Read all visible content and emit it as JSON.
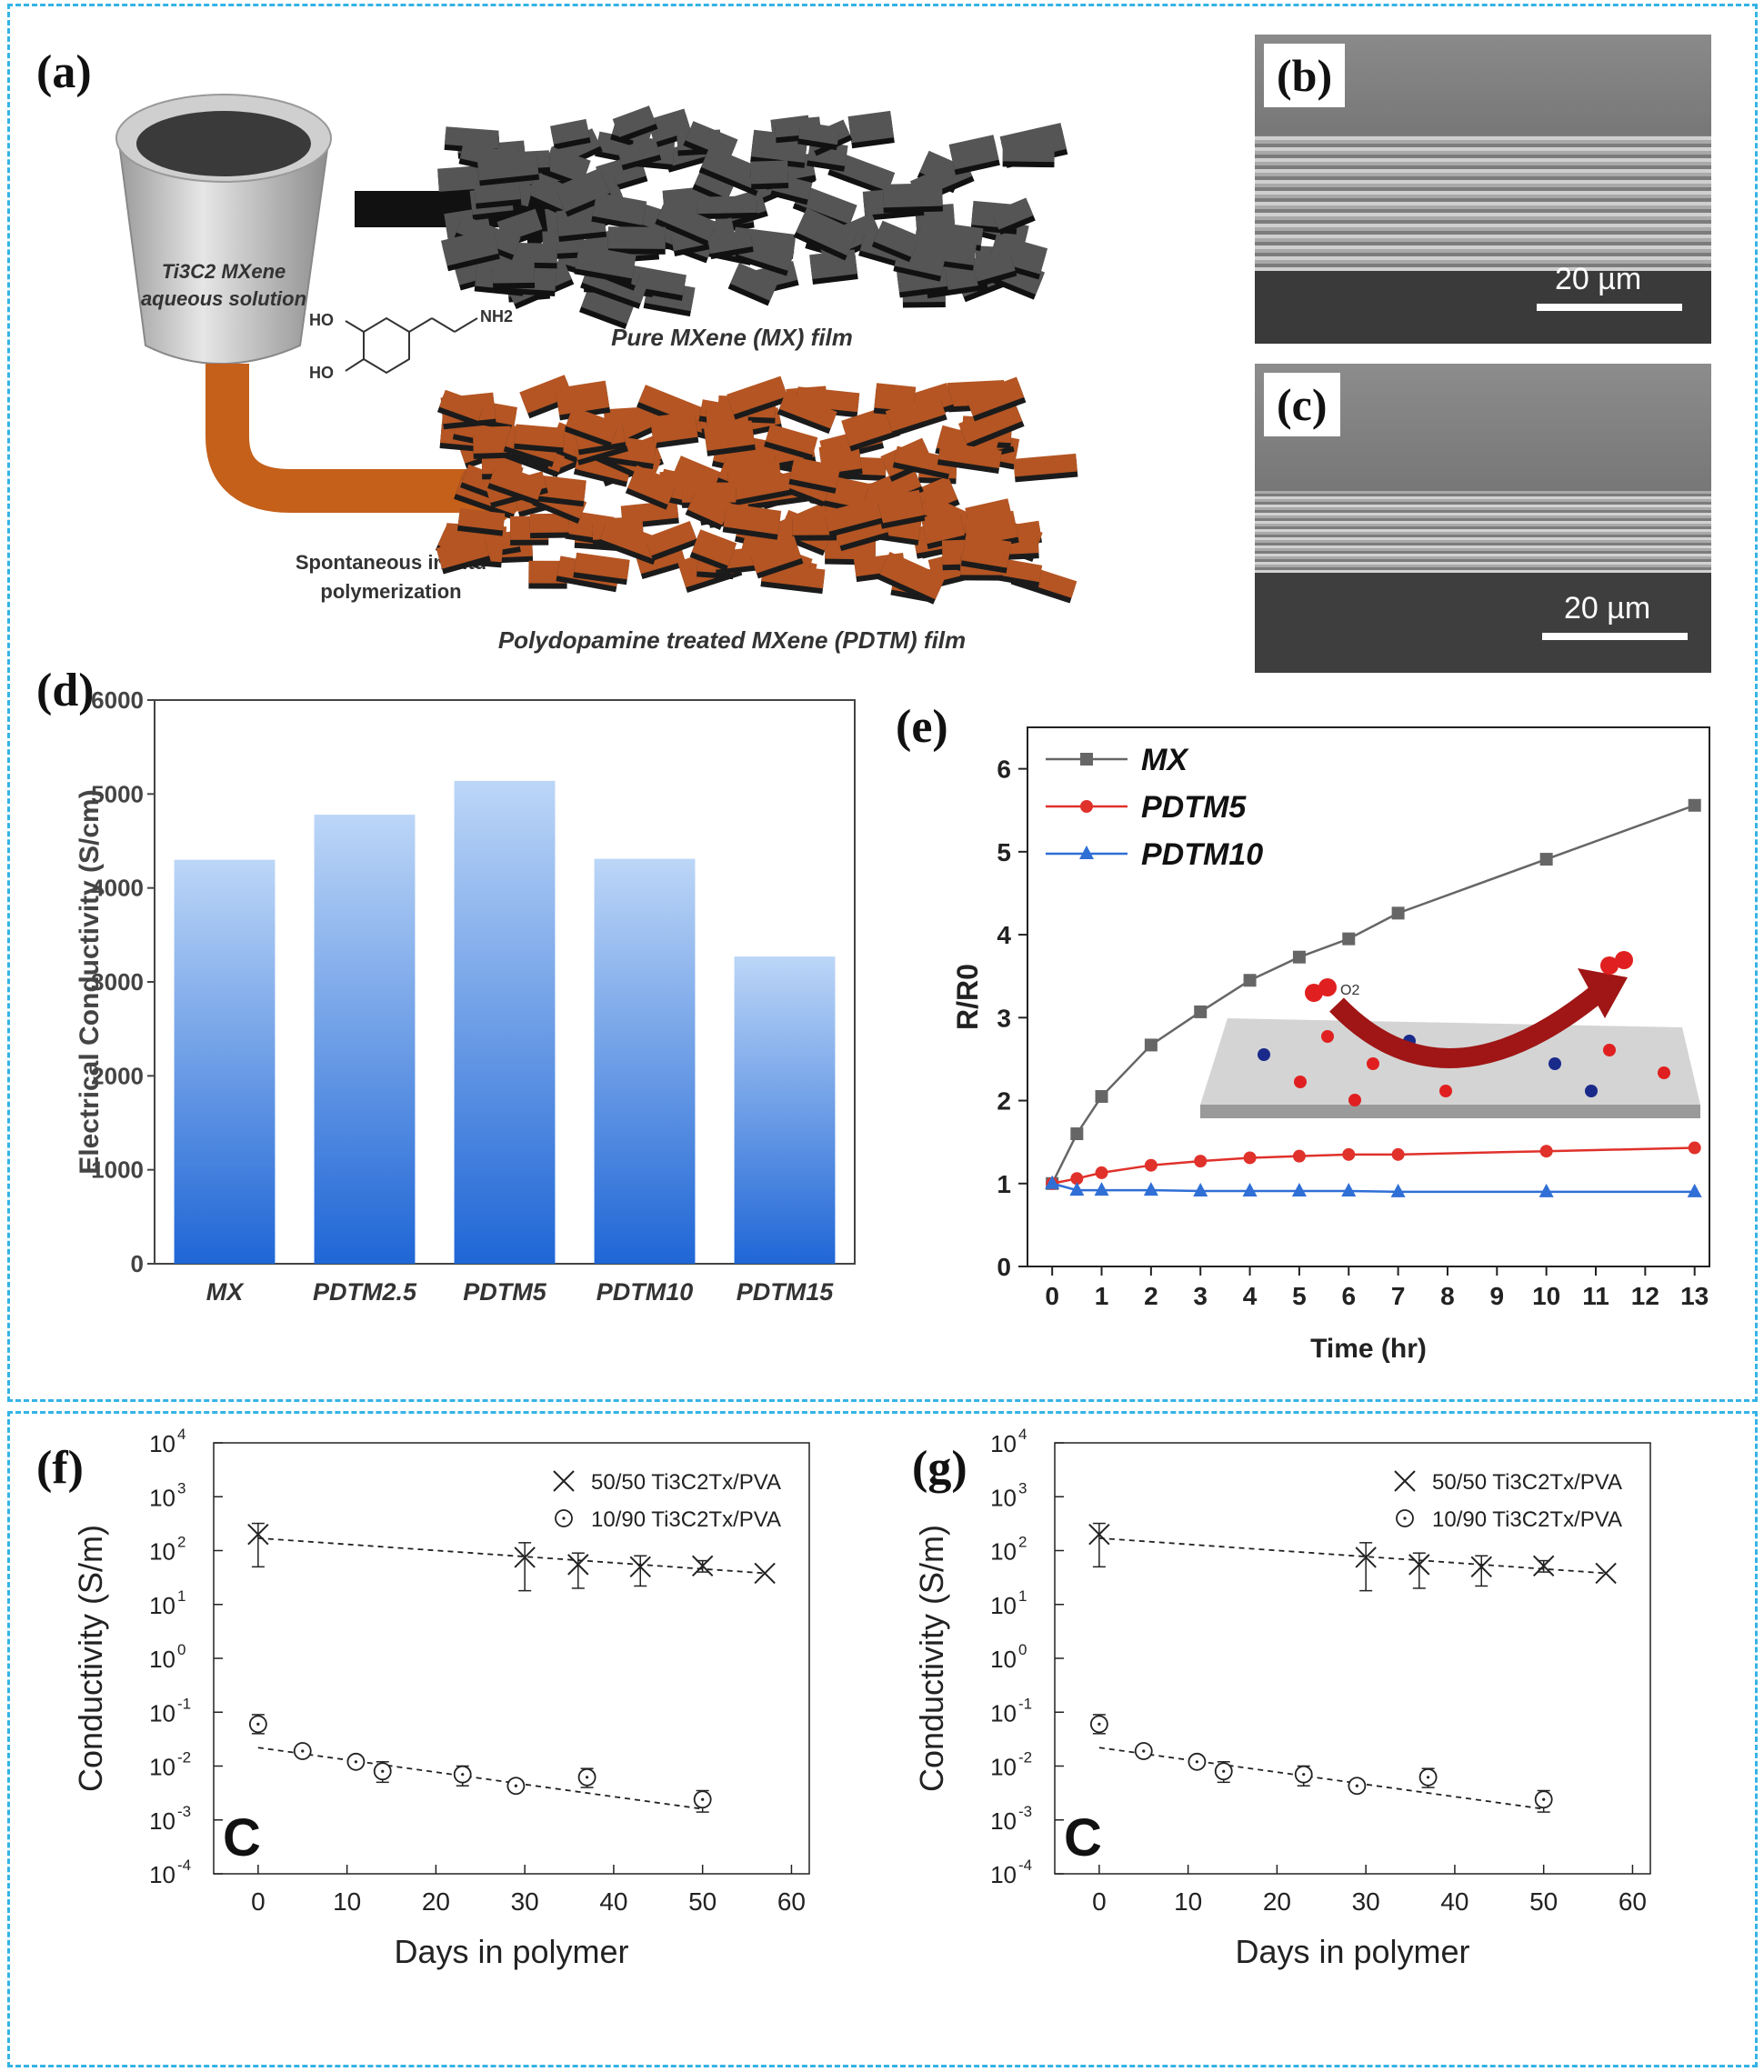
{
  "panels": {
    "a": "(a)",
    "b": "(b)",
    "c": "(c)",
    "d": "(d)",
    "e": "(e)",
    "f": "(f)",
    "g": "(g)"
  },
  "schematic": {
    "cup_label_1": "Ti3C2 MXene",
    "cup_label_2": "aqueous solution",
    "pure_film": "Pure MXene (MX) film",
    "pdtm_film": "Polydopamine treated MXene (PDTM) film",
    "molecule_ho1": "HO",
    "molecule_ho2": "HO",
    "molecule_nh2": "NH2",
    "process_1": "Spontaneous in situ",
    "process_2": "polymerization"
  },
  "sem_b": {
    "scale": "20 µm"
  },
  "sem_c": {
    "scale": "20 µm"
  },
  "chart_data": [
    {
      "id": "d",
      "type": "bar",
      "categories": [
        "MX",
        "PDTM2.5",
        "PDTM5",
        "PDTM10",
        "PDTM15"
      ],
      "values": [
        4300,
        4780,
        5140,
        4310,
        3270
      ],
      "ylabel": "Electrical Conductivity (S/cm)",
      "ylim": [
        0,
        6000
      ],
      "yticks": [
        "0",
        "1000",
        "2000",
        "3000",
        "4000",
        "5000",
        "6000"
      ]
    },
    {
      "id": "e",
      "type": "line",
      "xlabel": "Time (hr)",
      "ylabel": "R/R0",
      "xlim": [
        -0.5,
        13.3
      ],
      "ylim": [
        0,
        6.5
      ],
      "xticks": [
        "0",
        "1",
        "2",
        "3",
        "4",
        "5",
        "6",
        "7",
        "8",
        "9",
        "10",
        "11",
        "12",
        "13"
      ],
      "yticks": [
        "0",
        "1",
        "2",
        "3",
        "4",
        "5",
        "6"
      ],
      "legend_position": "top-left",
      "inset_label": "O2",
      "series": [
        {
          "name": "MX",
          "color": "#666666",
          "marker": "square",
          "x": [
            0,
            0.5,
            1,
            2,
            3,
            4,
            5,
            6,
            7,
            10,
            13
          ],
          "y": [
            1.0,
            1.6,
            2.05,
            2.67,
            3.07,
            3.45,
            3.73,
            3.95,
            4.26,
            4.91,
            5.56
          ]
        },
        {
          "name": "PDTM5",
          "color": "#e0312b",
          "marker": "circle",
          "x": [
            0,
            0.5,
            1,
            2,
            3,
            4,
            5,
            6,
            7,
            10,
            13
          ],
          "y": [
            1.0,
            1.06,
            1.13,
            1.22,
            1.27,
            1.31,
            1.33,
            1.35,
            1.35,
            1.39,
            1.43
          ]
        },
        {
          "name": "PDTM10",
          "color": "#2f6fd6",
          "marker": "triangle",
          "x": [
            0,
            0.5,
            1,
            2,
            3,
            4,
            5,
            6,
            7,
            10,
            13
          ],
          "y": [
            1.0,
            0.92,
            0.92,
            0.92,
            0.91,
            0.91,
            0.91,
            0.91,
            0.9,
            0.9,
            0.9
          ]
        }
      ]
    },
    {
      "id": "f",
      "type": "scatter",
      "xlabel": "Days in polymer",
      "ylabel": "Conductivity (S/m)",
      "xlim": [
        -5,
        62
      ],
      "ylim_log10": [
        -4,
        4
      ],
      "xticks": [
        "0",
        "10",
        "20",
        "30",
        "40",
        "50",
        "60"
      ],
      "yticks_exp": [
        "-4",
        "-3",
        "-2",
        "-1",
        "0",
        "1",
        "2",
        "3",
        "4"
      ],
      "corner_letter": "C",
      "legend_position": "top-right",
      "series": [
        {
          "name": "50/50 Ti3C2Tx/PVA",
          "marker": "x",
          "x": [
            0,
            30,
            36,
            43,
            50,
            57
          ],
          "y": [
            200,
            75,
            55,
            50,
            52,
            38
          ],
          "err_hi": [
            320,
            140,
            90,
            80,
            65,
            0
          ],
          "err_lo": [
            50,
            18,
            20,
            22,
            40,
            0
          ],
          "fit": [
            [
              0,
              170
            ],
            [
              57,
              38
            ]
          ]
        },
        {
          "name": "10/90 Ti3C2Tx/PVA",
          "marker": "circle",
          "x": [
            0,
            5,
            11,
            14,
            23,
            29,
            37,
            50
          ],
          "y": [
            0.06,
            0.019,
            0.012,
            0.008,
            0.007,
            0.0043,
            0.0062,
            0.0024
          ],
          "err_hi": [
            0.09,
            0.024,
            0.015,
            0.012,
            0.01,
            0.005,
            0.009,
            0.0035
          ],
          "err_lo": [
            0.04,
            0.016,
            0.01,
            0.005,
            0.0043,
            0.0037,
            0.004,
            0.0014
          ],
          "fit": [
            [
              0,
              0.022
            ],
            [
              50,
              0.0016
            ]
          ]
        }
      ]
    },
    {
      "id": "g",
      "type": "scatter",
      "xlabel": "Days in polymer",
      "ylabel": "Conductivity (S/m)",
      "xlim": [
        -5,
        62
      ],
      "ylim_log10": [
        -4,
        4
      ],
      "xticks": [
        "0",
        "10",
        "20",
        "30",
        "40",
        "50",
        "60"
      ],
      "yticks_exp": [
        "-4",
        "-3",
        "-2",
        "-1",
        "0",
        "1",
        "2",
        "3",
        "4"
      ],
      "corner_letter": "C",
      "legend_position": "top-right",
      "series": [
        {
          "name": "50/50 Ti3C2Tx/PVA",
          "marker": "x",
          "x": [
            0,
            30,
            36,
            43,
            50,
            57
          ],
          "y": [
            200,
            75,
            55,
            50,
            52,
            38
          ],
          "err_hi": [
            320,
            140,
            90,
            80,
            65,
            0
          ],
          "err_lo": [
            50,
            18,
            20,
            22,
            40,
            0
          ],
          "fit": [
            [
              0,
              170
            ],
            [
              57,
              38
            ]
          ]
        },
        {
          "name": "10/90 Ti3C2Tx/PVA",
          "marker": "circle",
          "x": [
            0,
            5,
            11,
            14,
            23,
            29,
            37,
            50
          ],
          "y": [
            0.06,
            0.019,
            0.012,
            0.008,
            0.007,
            0.0043,
            0.0062,
            0.0024
          ],
          "err_hi": [
            0.09,
            0.024,
            0.015,
            0.012,
            0.01,
            0.005,
            0.009,
            0.0035
          ],
          "err_lo": [
            0.04,
            0.016,
            0.01,
            0.005,
            0.0043,
            0.0037,
            0.004,
            0.0014
          ],
          "fit": [
            [
              0,
              0.022
            ],
            [
              50,
              0.0016
            ]
          ]
        }
      ]
    }
  ]
}
